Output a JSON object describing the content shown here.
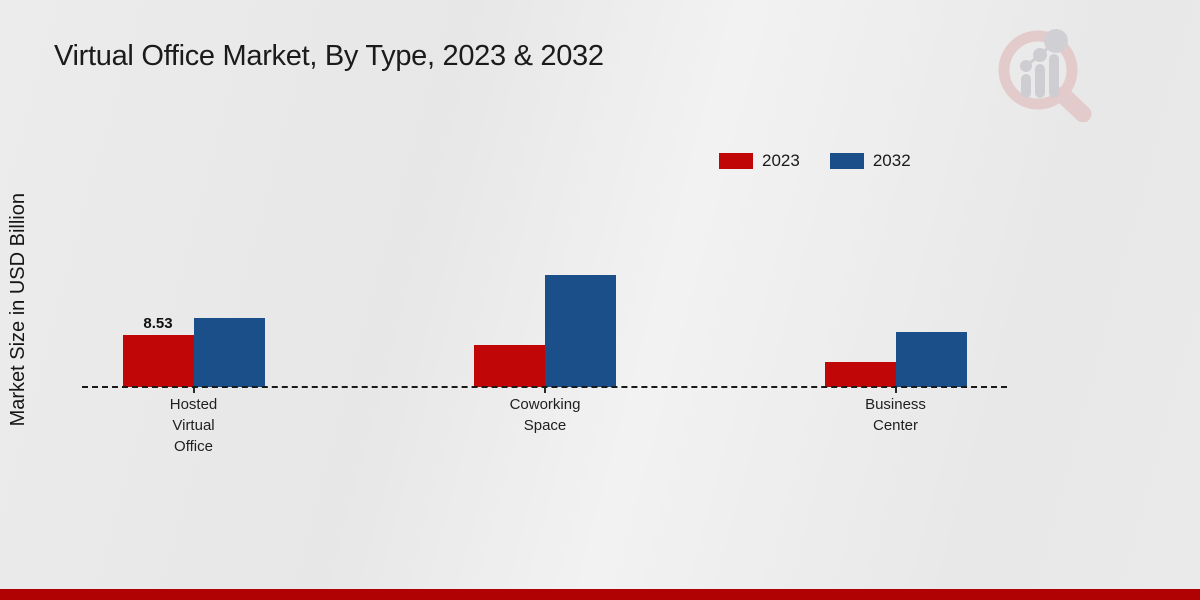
{
  "page": {
    "title": "Virtual Office Market, By Type, 2023 & 2032"
  },
  "axis": {
    "y_label": "Market Size in USD Billion"
  },
  "legend": {
    "items": [
      {
        "label": "2023",
        "color": "#c00606"
      },
      {
        "label": "2032",
        "color": "#1b4f8a"
      }
    ]
  },
  "colors": {
    "series_2023": "#c00606",
    "series_2032": "#1b4f8a",
    "footer_bar": "#b00202",
    "axis_line": "#1a1a1a",
    "background": "#eaeaea"
  },
  "watermark": {
    "icon": "magnifier-bar-chart-logo"
  },
  "chart_data": {
    "type": "bar",
    "title": "Virtual Office Market, By Type, 2023 & 2032",
    "ylabel": "Market Size in USD Billion",
    "value_unit": "USD Billion",
    "categories": [
      "Hosted Virtual Office",
      "Coworking Space",
      "Business Center"
    ],
    "category_label_lines": [
      [
        "Hosted",
        "Virtual",
        "Office"
      ],
      [
        "Coworking",
        "Space"
      ],
      [
        "Business",
        "Center"
      ]
    ],
    "series": [
      {
        "name": "2023",
        "color": "#c00606",
        "values": [
          8.53,
          6.9,
          4.1
        ],
        "point_labels": [
          "8.53",
          "",
          ""
        ]
      },
      {
        "name": "2032",
        "color": "#1b4f8a",
        "values": [
          11.3,
          18.4,
          9.0
        ],
        "point_labels": [
          "",
          "",
          ""
        ]
      }
    ],
    "ylim": [
      0,
      20
    ],
    "grid": false,
    "legend_position": "top-right",
    "baseline_style": "dashed",
    "y_axis_ticks_visible": false
  }
}
